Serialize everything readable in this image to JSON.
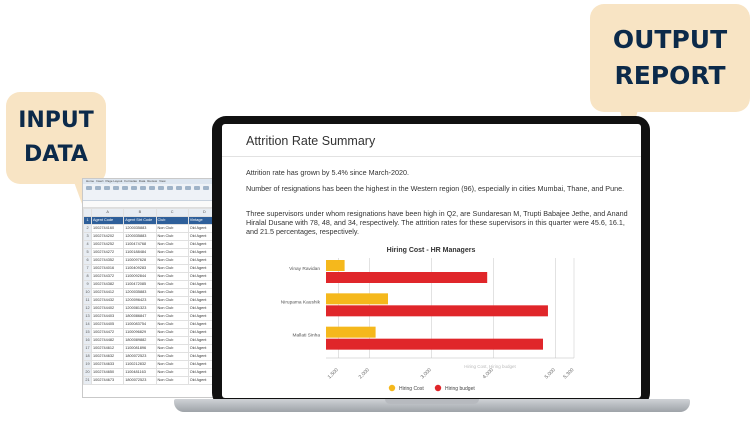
{
  "labels": {
    "input_line1": "INPUT",
    "input_line2": "DATA",
    "output_line1": "OUTPUT",
    "output_line2": "REPORT"
  },
  "excel": {
    "tabs": [
      "Home",
      "Insert",
      "Page Layout",
      "Formulas",
      "Data",
      "Review",
      "View"
    ],
    "columns": [
      "",
      "A",
      "B",
      "C",
      "D"
    ],
    "header": [
      "1",
      "Agent Code",
      "Agent Strt Code",
      "Club",
      "Vintage"
    ],
    "rows": [
      [
        "2",
        "1002744160",
        "1200035883",
        "Non Club",
        "Old Agent"
      ],
      [
        "3",
        "1002744202",
        "1200035883",
        "Non Club",
        "Old Agent"
      ],
      [
        "4",
        "1002744252",
        "1100474768",
        "Non Club",
        "Old Agent"
      ],
      [
        "5",
        "1002744272",
        "1100188484",
        "Non Club",
        "Old Agent"
      ],
      [
        "6",
        "1002744352",
        "1100097628",
        "Non Club",
        "Old Agent"
      ],
      [
        "7",
        "1002744016",
        "1100409283",
        "Non Club",
        "Old Agent"
      ],
      [
        "8",
        "1002744372",
        "1100092844",
        "Non Club",
        "Old Agent"
      ],
      [
        "9",
        "1002744382",
        "1100472085",
        "Non Club",
        "Old Agent"
      ],
      [
        "10",
        "1002744412",
        "1200035883",
        "Non Club",
        "Old Agent"
      ],
      [
        "11",
        "1002744432",
        "1200096423",
        "Non Club",
        "Old Agent"
      ],
      [
        "12",
        "1002744402",
        "1200081323",
        "Non Club",
        "Old Agent"
      ],
      [
        "13",
        "1002744403",
        "1800086847",
        "Non Club",
        "Old Agent"
      ],
      [
        "14",
        "1002744405",
        "1100083754",
        "Non Club",
        "Old Agent"
      ],
      [
        "15",
        "1002744472",
        "1100096829",
        "Non Club",
        "Old Agent"
      ],
      [
        "16",
        "1002744482",
        "1800089882",
        "Non Club",
        "Old Agent"
      ],
      [
        "17",
        "1002744612",
        "1100081896",
        "Non Club",
        "Old Agent"
      ],
      [
        "18",
        "1002744632",
        "1800072523",
        "Non Club",
        "Old Agent"
      ],
      [
        "19",
        "1002744633",
        "1100212832",
        "Non Club",
        "Old Agent"
      ],
      [
        "20",
        "1002744650",
        "1100481163",
        "Non Club",
        "Old Agent"
      ],
      [
        "21",
        "1002744673",
        "1800072523",
        "Non Club",
        "Old Agent"
      ]
    ]
  },
  "report": {
    "title": "Attrition Rate Summary",
    "p1": "Attrition rate has grown by 5.4% since March-2020.",
    "p2": "Number of resignations has been the highest in the Western region (96), especially in cities Mumbai, Thane, and Pune.",
    "p3": "Three supervisors under whom resignations have been high in Q2, are Sundaresan M, Trupti Babajee Jethe, and Anand Hiralal Dusane with 78, 48, and 34, respectively. The attrition rates for these supervisors in this quarter were 45.6, 16.1, and 21.5 percentages, respectively."
  },
  "chart_data": {
    "type": "bar",
    "orientation": "horizontal",
    "title": "Hiring Cost - HR Managers",
    "categories": [
      "Vinay Ravidan",
      "Nirupama Kaushik",
      "Mallati Sinha"
    ],
    "series": [
      {
        "name": "Hiring Cost",
        "color": "#f5b81c",
        "values": [
          1600,
          2300,
          2100
        ]
      },
      {
        "name": "Hiring budget",
        "color": "#e0262a",
        "values": [
          3900,
          4880,
          4800
        ]
      }
    ],
    "xlim": [
      1300,
      5300
    ],
    "xticks": [
      "1,500",
      "2,000",
      "3,000",
      "4,000",
      "5,000",
      "5,300"
    ],
    "xlabel": "Hiring Cost, Hiring budget",
    "grid": true,
    "legend_position": "bottom"
  }
}
